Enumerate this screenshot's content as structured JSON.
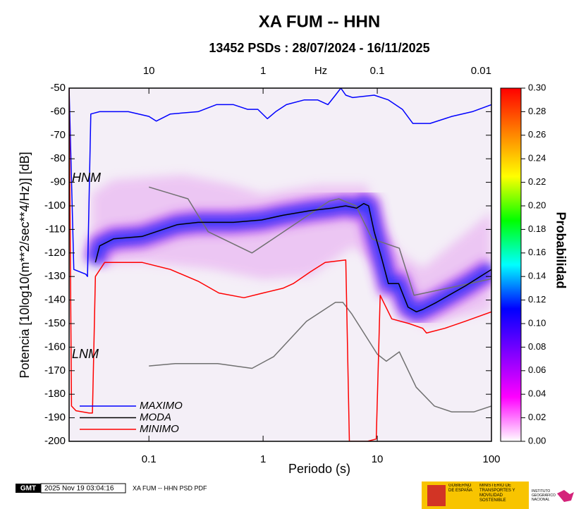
{
  "chart_data": {
    "type": "line",
    "title": "XA FUM -- HHN",
    "subtitle": "13452 PSDs : 28/07/2024 - 16/11/2025",
    "xlabel": "Periodo (s)",
    "ylabel": "Potencia [10log10(m**2/sec**4/Hz)] [dB]",
    "xscale": "log",
    "xlim": [
      0.02,
      100
    ],
    "xticks": [
      0.1,
      1,
      10,
      100
    ],
    "top_axis_label": "Hz",
    "top_xticks": [
      {
        "value": 0.1,
        "label": "10"
      },
      {
        "value": 1,
        "label": "1"
      },
      {
        "value": 10,
        "label": "0.1"
      },
      {
        "value": 100,
        "label": "0.01"
      }
    ],
    "ylim": [
      -200,
      -50
    ],
    "yticks": [
      -200,
      -190,
      -180,
      -170,
      -160,
      -150,
      -140,
      -130,
      -120,
      -110,
      -100,
      -90,
      -80,
      -70,
      -60,
      -50
    ],
    "series": [
      {
        "name": "MAXIMO",
        "color": "#0000ff",
        "x": [
          0.02,
          0.022,
          0.028,
          0.029,
          0.031,
          0.037,
          0.066,
          0.1,
          0.116,
          0.154,
          0.27,
          0.39,
          0.55,
          0.73,
          0.9,
          1.09,
          1.29,
          1.6,
          2.3,
          3.0,
          3.7,
          4.3,
          4.8,
          5.3,
          6.1,
          9.4,
          12.5,
          16.6,
          20.5,
          29,
          45,
          68,
          100
        ],
        "values": [
          -50,
          -127,
          -129,
          -130,
          -61,
          -60,
          -60,
          -62,
          -64,
          -61,
          -60,
          -57,
          -57,
          -59,
          -59,
          -63,
          -60,
          -57,
          -55,
          -55,
          -57,
          -53,
          -50,
          -53,
          -54,
          -53,
          -55,
          -59,
          -65,
          -65,
          -62,
          -60,
          -57
        ]
      },
      {
        "name": "MODA",
        "color": "#000000",
        "x": [
          0.034,
          0.037,
          0.049,
          0.087,
          0.116,
          0.177,
          0.27,
          0.55,
          0.97,
          1.49,
          2.6,
          4.0,
          5.3,
          6.6,
          7.6,
          8.4,
          9.4,
          10.9,
          12.5,
          15.4,
          18.6,
          22,
          25,
          33,
          59,
          100
        ],
        "values": [
          -124,
          -117,
          -114,
          -113,
          -111,
          -108,
          -107,
          -107,
          -106,
          -104,
          -102,
          -101,
          -100,
          -101,
          -99,
          -100,
          -111,
          -122,
          -133,
          -133,
          -143,
          -145,
          -144,
          -141,
          -134,
          -127
        ]
      },
      {
        "name": "MINIMO",
        "color": "#ff0000",
        "x": [
          0.02,
          0.021,
          0.023,
          0.03,
          0.032,
          0.034,
          0.041,
          0.087,
          0.154,
          0.27,
          0.41,
          0.68,
          1.0,
          1.49,
          1.84,
          2.6,
          3.5,
          5.3,
          5.7,
          8.2,
          9.8,
          10.6,
          13.4,
          19,
          25,
          27,
          39,
          59,
          100
        ],
        "values": [
          -50,
          -185,
          -187,
          -188,
          -188,
          -130,
          -124,
          -124,
          -127,
          -132,
          -137,
          -139,
          -137,
          -135,
          -133,
          -128,
          -124,
          -123,
          -200,
          -200,
          -199,
          -138,
          -148,
          -150,
          -152,
          -154,
          -152,
          -149,
          -145
        ]
      }
    ],
    "reference_models": [
      {
        "name": "HNM",
        "color": "#707070",
        "x": [
          0.1,
          0.22,
          0.33,
          0.8,
          3.8,
          4.6,
          6.5,
          9.0,
          15.6,
          21,
          100
        ],
        "values": [
          -92,
          -97,
          -111,
          -120,
          -98,
          -97,
          -100,
          -114,
          -118,
          -138,
          -131
        ]
      },
      {
        "name": "LNM",
        "color": "#707070",
        "x": [
          0.1,
          0.17,
          0.4,
          0.8,
          1.24,
          2.4,
          4.3,
          5.0,
          6.0,
          10,
          12,
          15.6,
          21.9,
          31.6,
          45,
          70,
          100
        ],
        "values": [
          -168,
          -167,
          -167,
          -169,
          -164,
          -149,
          -141,
          -141,
          -146,
          -163,
          -166,
          -162,
          -177,
          -185,
          -187.5,
          -187.5,
          -185
        ]
      }
    ],
    "colorbar": {
      "label": "Probabilidad",
      "lim": [
        0,
        0.3
      ],
      "colors": [
        "#ffffff",
        "#ff00ff",
        "#8000ff",
        "#0000ff",
        "#00ffff",
        "#00ff00",
        "#ffff00",
        "#ff8000",
        "#ff0000"
      ],
      "ticks": [
        {
          "value": 0,
          "label": "0.00"
        },
        {
          "value": 0.02,
          "label": "0.02"
        },
        {
          "value": 0.04,
          "label": "0.04"
        },
        {
          "value": 0.06,
          "label": "0.06"
        },
        {
          "value": 0.08,
          "label": "0.08"
        },
        {
          "value": 0.1,
          "label": "0.10"
        },
        {
          "value": 0.12,
          "label": "0.12"
        },
        {
          "value": 0.14,
          "label": "0.14"
        },
        {
          "value": 0.16,
          "label": "0.16"
        },
        {
          "value": 0.18,
          "label": "0.18"
        },
        {
          "value": 0.2,
          "label": "0.20"
        },
        {
          "value": 0.22,
          "label": "0.22"
        },
        {
          "value": 0.24,
          "label": "0.24"
        },
        {
          "value": 0.26,
          "label": "0.26"
        },
        {
          "value": 0.28,
          "label": "0.28"
        },
        {
          "value": 0.3,
          "label": "0.30"
        }
      ]
    }
  },
  "footer": {
    "logo": "GMT",
    "timestamp": "2025 Nov 19 03:04:16",
    "caption": "XA FUM -- HHN PSD PDF",
    "gov": "GOBIERNO DE ESPAÑA",
    "ministry": "MINISTERIO DE TRANSPORTES Y MOVILIDAD SOSTENIBLE",
    "ign": "INSTITUTO GEOGRÁFICO NACIONAL"
  }
}
